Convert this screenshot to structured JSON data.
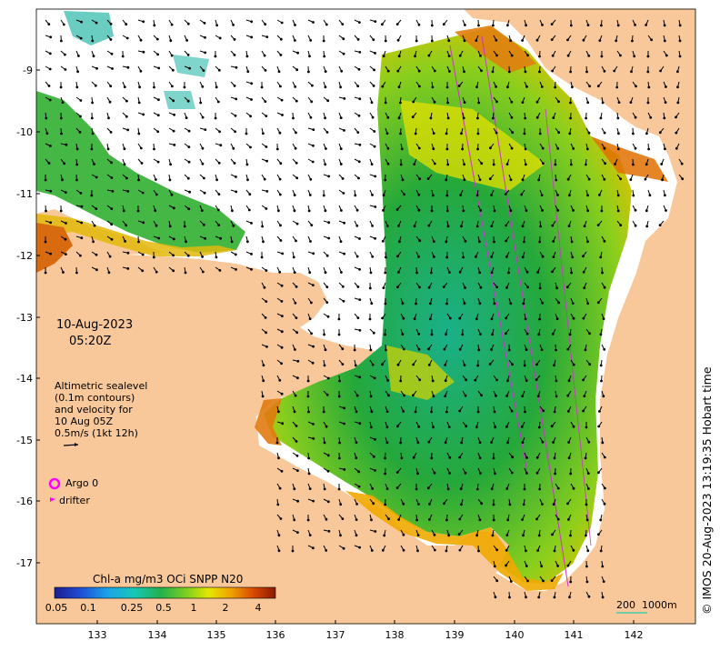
{
  "map": {
    "date": "10-Aug-2023",
    "time": "05:20Z",
    "x_ticks": [
      "133",
      "134",
      "135",
      "136",
      "137",
      "138",
      "139",
      "140",
      "141",
      "142"
    ],
    "y_ticks": [
      "-9",
      "-10",
      "-11",
      "-12",
      "-13",
      "-14",
      "-15",
      "-16",
      "-17"
    ],
    "info_lines": [
      "Altimetric sealevel",
      "(0.1m contours)",
      "and velocity for",
      "10 Aug 05Z",
      "0.5m/s (1kt 12h)"
    ],
    "legend": {
      "argo": "Argo 0",
      "drifter": "drifter"
    },
    "colorbar": {
      "title": "Chl-a mg/m3 OCi SNPP N20",
      "labels": [
        "0.05",
        "0.1",
        "0.25",
        "0.5",
        "1",
        "2",
        "4"
      ]
    },
    "scale": "200  1000m",
    "credit": "© IMOS 20-Aug-2023 13:19:35 Hobart time",
    "colors": {
      "land": "#f8c89a",
      "deep": "#1a3fb0",
      "mid": "#22b14c",
      "high": "#f2d200",
      "extreme": "#8b1a00",
      "argo": "#ff00ff"
    }
  }
}
